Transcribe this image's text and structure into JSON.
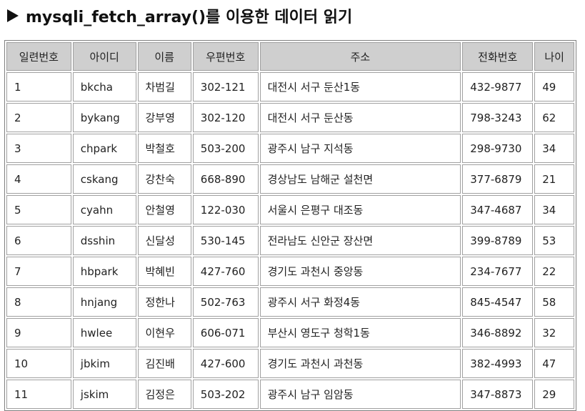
{
  "heading": {
    "icon": "play-triangle-icon",
    "title": "mysqli_fetch_array()를 이용한 데이터 읽기"
  },
  "table": {
    "headers": [
      "일련번호",
      "아이디",
      "이름",
      "우편번호",
      "주소",
      "전화번호",
      "나이"
    ],
    "rows": [
      [
        "1",
        "bkcha",
        "차범길",
        "302-121",
        "대전시 서구 둔산1동",
        "432-9877",
        "49"
      ],
      [
        "2",
        "bykang",
        "강부영",
        "302-120",
        "대전시 서구 둔산동",
        "798-3243",
        "62"
      ],
      [
        "3",
        "chpark",
        "박철호",
        "503-200",
        "광주시 남구 지석동",
        "298-9730",
        "34"
      ],
      [
        "4",
        "cskang",
        "강찬숙",
        "668-890",
        "경상남도 남해군 설천면",
        "377-6879",
        "21"
      ],
      [
        "5",
        "cyahn",
        "안철영",
        "122-030",
        "서울시 은평구 대조동",
        "347-4687",
        "34"
      ],
      [
        "6",
        "dsshin",
        "신달성",
        "530-145",
        "전라남도 신안군 장산면",
        "399-8789",
        "53"
      ],
      [
        "7",
        "hbpark",
        "박혜빈",
        "427-760",
        "경기도 과천시 중앙동",
        "234-7677",
        "22"
      ],
      [
        "8",
        "hnjang",
        "정한나",
        "502-763",
        "광주시 서구 화정4동",
        "845-4547",
        "58"
      ],
      [
        "9",
        "hwlee",
        "이현우",
        "606-071",
        "부산시 영도구 청학1동",
        "346-8892",
        "32"
      ],
      [
        "10",
        "jbkim",
        "김진배",
        "427-600",
        "경기도 과천시 과천동",
        "382-4993",
        "47"
      ],
      [
        "11",
        "jskim",
        "김정은",
        "503-202",
        "광주시 남구 임암동",
        "347-8873",
        "29"
      ]
    ]
  }
}
